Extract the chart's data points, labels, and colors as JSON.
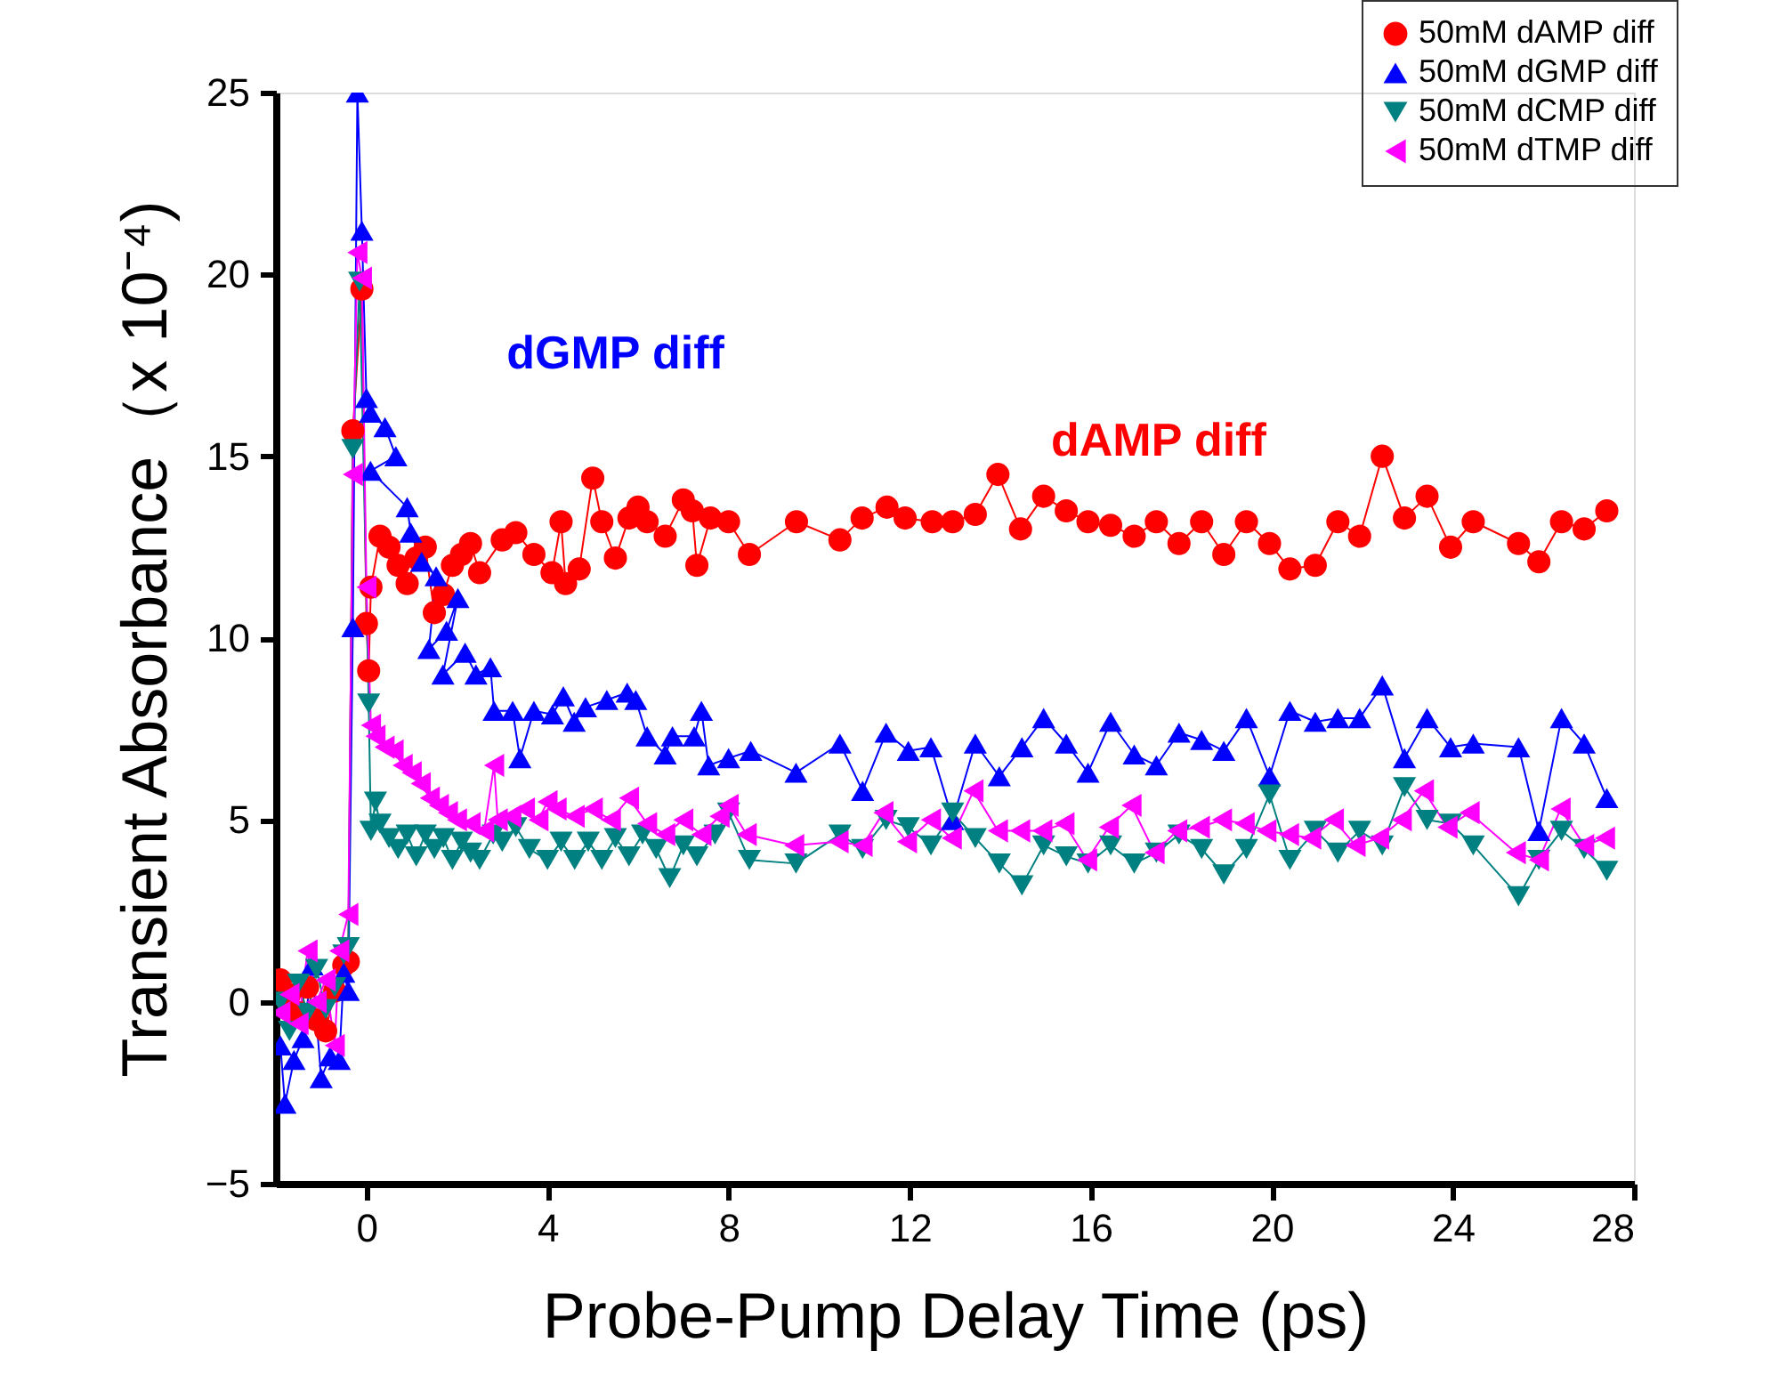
{
  "chart_data": {
    "type": "line",
    "xlabel": "Probe-Pump Delay Time (ps)",
    "ylabel": "Transient Absorbance（x 10⁻⁴)",
    "xlim": [
      -2,
      28
    ],
    "xticks": [
      0,
      4,
      8,
      12,
      16,
      20,
      24,
      28
    ],
    "ylim": [
      -5,
      25
    ],
    "yticks": [
      -5,
      0,
      5,
      10,
      15,
      20,
      25
    ],
    "grid": false,
    "legend": "top right",
    "annotations": [
      "dAMP diff",
      "dGMP diff"
    ],
    "series": [
      {
        "name": "50mM dAMP diff",
        "color": "#ff0000",
        "marker": "circle",
        "x": [
          -1.9,
          -1.7,
          -1.5,
          -1.3,
          -1.1,
          -0.9,
          -0.7,
          -0.5,
          -0.4,
          -0.3,
          -0.1,
          0.0,
          0.05,
          0.1,
          0.3,
          0.5,
          0.7,
          0.9,
          1.1,
          1.3,
          1.5,
          1.7,
          1.9,
          2.1,
          2.3,
          2.5,
          3.0,
          3.3,
          3.7,
          4.1,
          4.3,
          4.4,
          4.7,
          5.0,
          5.2,
          5.5,
          5.8,
          6.0,
          6.2,
          6.6,
          7.0,
          7.2,
          7.3,
          7.6,
          8.0,
          8.46,
          9.5,
          10.46,
          10.95,
          11.5,
          11.9,
          12.5,
          12.95,
          13.45,
          13.95,
          14.45,
          14.96,
          15.46,
          15.94,
          16.44,
          16.96,
          17.45,
          17.95,
          18.45,
          18.94,
          19.44,
          19.95,
          20.4,
          20.96,
          21.46,
          21.94,
          22.44,
          22.93,
          23.43,
          23.95,
          24.45,
          25.45,
          25.9,
          26.4,
          26.9,
          27.4
        ],
        "values": [
          0.6,
          0.2,
          -0.3,
          0.4,
          -0.5,
          -0.8,
          0.3,
          1.0,
          1.1,
          15.7,
          19.6,
          10.4,
          9.1,
          11.4,
          12.8,
          12.5,
          12.0,
          11.5,
          12.2,
          12.5,
          10.7,
          11.2,
          12.0,
          12.3,
          12.6,
          11.8,
          12.7,
          12.9,
          12.3,
          11.8,
          13.2,
          11.5,
          11.9,
          14.4,
          13.2,
          12.2,
          13.3,
          13.6,
          13.2,
          12.8,
          13.8,
          13.5,
          12.0,
          13.3,
          13.2,
          12.3,
          13.2,
          12.7,
          13.3,
          13.6,
          13.3,
          13.2,
          13.2,
          13.4,
          14.5,
          13.0,
          13.9,
          13.5,
          13.2,
          13.1,
          12.8,
          13.2,
          12.6,
          13.2,
          12.3,
          13.2,
          12.6,
          11.9,
          12.0,
          13.2,
          12.8,
          15.0,
          13.3,
          13.9,
          12.5,
          13.2,
          12.6,
          12.1,
          13.2,
          13.0,
          13.5
        ]
      },
      {
        "name": "50mM dGMP diff",
        "color": "#0000ff",
        "marker": "triangle",
        "x": [
          -1.9,
          -1.8,
          -1.6,
          -1.4,
          -1.2,
          -1.0,
          -0.8,
          -0.6,
          -0.5,
          -0.4,
          -0.3,
          -0.2,
          -0.1,
          0.0,
          0.09,
          0.41,
          0.65,
          0.09,
          0.9,
          0.98,
          1.22,
          1.54,
          1.38,
          1.77,
          2.02,
          1.69,
          2.18,
          2.42,
          2.74,
          2.82,
          3.23,
          3.39,
          3.7,
          4.11,
          4.35,
          4.59,
          4.84,
          5.31,
          5.76,
          5.95,
          6.2,
          6.6,
          6.76,
          7.24,
          7.4,
          7.56,
          8.0,
          8.49,
          9.49,
          10.46,
          10.96,
          11.48,
          11.97,
          12.47,
          12.95,
          13.45,
          13.98,
          14.48,
          14.96,
          15.46,
          15.94,
          16.44,
          16.96,
          17.45,
          17.95,
          18.45,
          18.94,
          19.44,
          19.95,
          20.4,
          20.96,
          21.46,
          21.94,
          22.44,
          22.93,
          23.43,
          23.95,
          24.45,
          25.45,
          25.9,
          26.4,
          26.9,
          27.4
        ],
        "values": [
          -1.2,
          -2.8,
          -1.6,
          -1.0,
          1.0,
          -2.1,
          -1.5,
          -1.6,
          0.8,
          0.3,
          10.3,
          25,
          21.2,
          16.6,
          16.2,
          15.8,
          15.0,
          14.6,
          13.6,
          12.9,
          12.1,
          11.7,
          9.7,
          10.2,
          11.1,
          9.0,
          9.6,
          9.0,
          9.2,
          8.0,
          8.0,
          6.7,
          8.0,
          7.9,
          8.4,
          7.7,
          8.1,
          8.3,
          8.5,
          8.3,
          7.3,
          6.8,
          7.3,
          7.3,
          8.0,
          6.5,
          6.7,
          6.9,
          6.3,
          7.1,
          5.8,
          7.4,
          6.9,
          7.0,
          5.0,
          7.1,
          6.2,
          7.0,
          7.8,
          7.1,
          6.3,
          7.7,
          6.8,
          6.5,
          7.4,
          7.2,
          6.9,
          7.8,
          6.2,
          8.0,
          7.7,
          7.8,
          7.8,
          8.7,
          6.7,
          7.8,
          7.0,
          7.1,
          7.0,
          4.7,
          7.8,
          7.1,
          5.6
        ]
      },
      {
        "name": "50mM dCMP diff",
        "color": "#008080",
        "marker": "triangle-down",
        "x": [
          -1.9,
          -1.7,
          -1.5,
          -1.3,
          -1.1,
          -0.9,
          -0.7,
          -0.5,
          -0.4,
          -0.3,
          -0.15,
          0.05,
          0.1,
          0.2,
          0.3,
          0.5,
          0.7,
          0.9,
          1.1,
          1.3,
          1.5,
          1.7,
          1.9,
          2.1,
          2.3,
          2.5,
          2.8,
          3.0,
          3.3,
          3.6,
          4.0,
          4.3,
          4.6,
          4.9,
          5.2,
          5.5,
          5.8,
          6.1,
          6.4,
          6.7,
          7.0,
          7.3,
          7.7,
          8.0,
          8.46,
          9.49,
          10.46,
          10.96,
          11.48,
          11.97,
          12.47,
          12.95,
          13.45,
          13.98,
          14.48,
          14.96,
          15.46,
          15.94,
          16.44,
          16.96,
          17.45,
          17.95,
          18.45,
          18.94,
          19.44,
          19.95,
          20.4,
          20.96,
          21.46,
          21.94,
          22.44,
          22.93,
          23.43,
          23.95,
          24.45,
          25.45,
          25.9,
          26.4,
          26.9,
          27.4
        ],
        "values": [
          0.0,
          -0.8,
          0.5,
          -0.3,
          0.9,
          -0.2,
          0.4,
          1.3,
          1.5,
          15.2,
          19.8,
          8.2,
          4.7,
          5.5,
          4.9,
          4.5,
          4.2,
          4.6,
          4.0,
          4.6,
          4.2,
          4.5,
          3.9,
          4.4,
          4.1,
          3.9,
          4.6,
          4.4,
          4.8,
          4.2,
          3.9,
          4.4,
          3.9,
          4.4,
          3.9,
          4.5,
          4.0,
          4.6,
          4.2,
          3.4,
          4.3,
          4.0,
          4.6,
          5.2,
          3.9,
          3.8,
          4.6,
          4.2,
          5.0,
          4.8,
          4.3,
          5.2,
          4.5,
          3.8,
          3.2,
          4.3,
          4.0,
          3.8,
          4.3,
          3.8,
          4.1,
          4.6,
          4.2,
          3.5,
          4.2,
          5.7,
          3.9,
          4.7,
          4.1,
          4.7,
          4.3,
          5.9,
          5.0,
          4.9,
          4.3,
          2.9,
          3.9,
          4.7,
          4.2,
          3.6
        ]
      },
      {
        "name": "50mM dTMP diff",
        "color": "#ff00ff",
        "marker": "triangle-left",
        "x": [
          -1.9,
          -1.7,
          -1.5,
          -1.3,
          -1.1,
          -0.9,
          -0.7,
          -0.6,
          -0.4,
          -0.3,
          -0.2,
          -0.1,
          0.0,
          0.1,
          0.2,
          0.4,
          0.6,
          0.8,
          1.0,
          1.2,
          1.4,
          1.6,
          1.8,
          2.0,
          2.3,
          2.6,
          2.82,
          2.9,
          3.2,
          3.5,
          3.8,
          4.0,
          4.2,
          4.6,
          5.0,
          5.4,
          5.8,
          6.2,
          6.6,
          7.0,
          7.4,
          7.8,
          8.0,
          8.4,
          9.45,
          10.43,
          10.96,
          11.42,
          11.94,
          12.47,
          12.93,
          13.41,
          13.95,
          14.44,
          14.93,
          15.42,
          15.92,
          16.4,
          16.9,
          17.41,
          17.91,
          18.41,
          18.9,
          19.4,
          19.88,
          20.38,
          20.87,
          21.37,
          21.85,
          22.37,
          22.87,
          23.36,
          23.88,
          24.37,
          25.39,
          25.9,
          26.38,
          26.9,
          27.36
        ],
        "values": [
          -0.3,
          0.2,
          -0.6,
          1.4,
          0.0,
          0.6,
          -1.2,
          1.4,
          2.4,
          14.5,
          20.6,
          19.9,
          11.4,
          7.6,
          7.3,
          7.0,
          6.9,
          6.5,
          6.3,
          6.0,
          5.6,
          5.4,
          5.2,
          5.0,
          4.9,
          4.7,
          6.5,
          5.0,
          5.1,
          5.3,
          5.0,
          5.5,
          5.3,
          5.1,
          5.3,
          5.0,
          5.6,
          4.9,
          4.6,
          5.0,
          4.6,
          5.1,
          5.4,
          4.6,
          4.3,
          4.4,
          4.3,
          5.2,
          4.4,
          5.0,
          4.5,
          5.8,
          4.7,
          4.7,
          4.7,
          4.9,
          3.9,
          4.8,
          5.4,
          4.1,
          4.7,
          4.8,
          5.0,
          4.9,
          4.7,
          4.6,
          4.5,
          5.0,
          4.3,
          4.5,
          5.0,
          5.8,
          4.8,
          5.2,
          4.1,
          3.9,
          5.3,
          4.3,
          4.5
        ]
      }
    ]
  }
}
